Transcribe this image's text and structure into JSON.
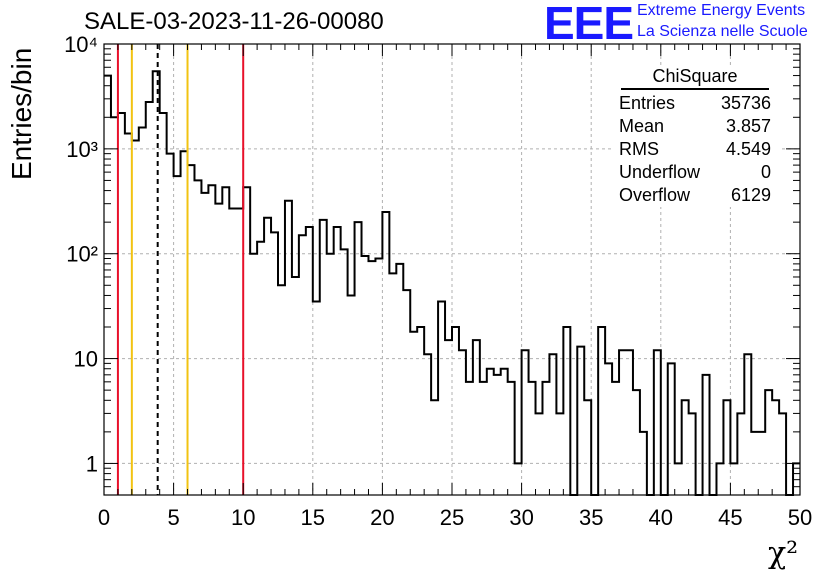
{
  "header": {
    "title": "SALE-03-2023-11-26-00080",
    "logo_text": "EEE",
    "logo_line1": "Extreme Energy Events",
    "logo_line2": "La Scienza nelle Scuole",
    "logo_color": "#1a1aff"
  },
  "stats_box": {
    "title": "ChiSquare",
    "rows": [
      {
        "label": "Entries",
        "value": "35736"
      },
      {
        "label": "Mean",
        "value": "3.857"
      },
      {
        "label": "RMS",
        "value": "4.549"
      },
      {
        "label": "Underflow",
        "value": "0"
      },
      {
        "label": "Overflow",
        "value": "6129"
      }
    ]
  },
  "chart_data": {
    "type": "histogram",
    "xlabel": "χ²",
    "ylabel": "Entries/bin",
    "xlim": [
      0,
      50
    ],
    "ylim": [
      0.5,
      10000
    ],
    "yscale": "log",
    "grid": true,
    "bin_width": 0.5,
    "x_ticks": [
      "0",
      "5",
      "10",
      "15",
      "20",
      "25",
      "30",
      "35",
      "40",
      "45",
      "50"
    ],
    "y_ticks": [
      {
        "value": 1,
        "label": "1"
      },
      {
        "value": 10,
        "label": "10"
      },
      {
        "value": 100,
        "label": "10²"
      },
      {
        "value": 1000,
        "label": "10³"
      },
      {
        "value": 10000,
        "label": "10⁴"
      }
    ],
    "values": [
      5000,
      2000,
      2200,
      1400,
      1200,
      1600,
      2800,
      5500,
      2200,
      900,
      550,
      950,
      700,
      500,
      380,
      450,
      300,
      430,
      270,
      270,
      430,
      100,
      130,
      220,
      160,
      50,
      320,
      60,
      150,
      180,
      35,
      210,
      100,
      180,
      110,
      40,
      200,
      95,
      85,
      90,
      250,
      65,
      80,
      45,
      18,
      20,
      11,
      4,
      35,
      15,
      20,
      12,
      6,
      15,
      6,
      8,
      7,
      8,
      6,
      1,
      12,
      6,
      3,
      6,
      11,
      3,
      20,
      0,
      13,
      4,
      0,
      20,
      9,
      6,
      12,
      12,
      5,
      2,
      0,
      12,
      0,
      9,
      1,
      4,
      3,
      0,
      7,
      0,
      1,
      4,
      1,
      3,
      11,
      2,
      2,
      5,
      4,
      3,
      0,
      1
    ],
    "vertical_lines": [
      {
        "x": 1,
        "color": "#e8102a",
        "style": "solid"
      },
      {
        "x": 2,
        "color": "#f2c311",
        "style": "solid"
      },
      {
        "x": 3.857,
        "color": "#000000",
        "style": "dashed"
      },
      {
        "x": 6,
        "color": "#f2c311",
        "style": "solid"
      },
      {
        "x": 10,
        "color": "#e8102a",
        "style": "solid"
      }
    ]
  }
}
